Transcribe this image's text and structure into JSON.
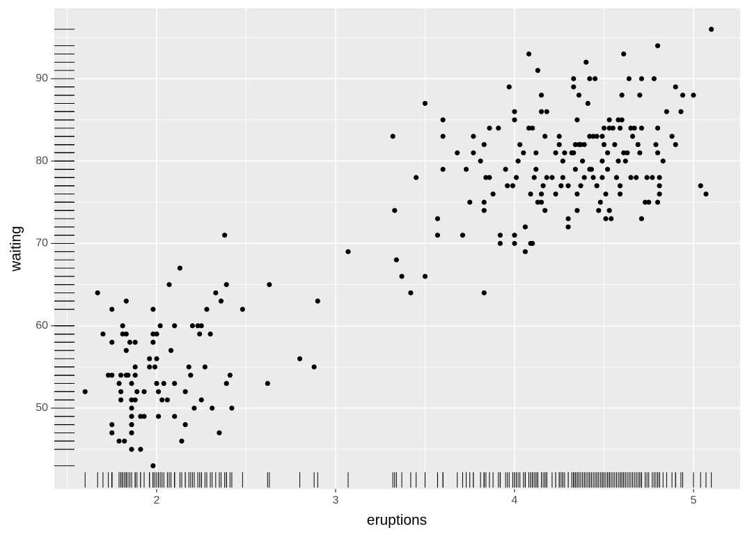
{
  "chart_data": {
    "type": "scatter",
    "x_label": "eruptions",
    "y_label": "waiting",
    "color": "#000000",
    "rug": true,
    "grid": true,
    "xlim": [
      1.428,
      5.261
    ],
    "ylim": [
      40.19,
      98.54
    ],
    "xticks": [
      2,
      3,
      4,
      5
    ],
    "yticks": [
      50,
      60,
      70,
      80,
      90
    ],
    "x": [
      1.6,
      1.67,
      1.7,
      1.73,
      1.75,
      1.75,
      1.75,
      1.75,
      1.75,
      1.79,
      1.79,
      1.8,
      1.8,
      1.8,
      1.81,
      1.81,
      1.82,
      1.83,
      1.83,
      1.83,
      1.83,
      1.84,
      1.85,
      1.86,
      1.86,
      1.86,
      1.86,
      1.86,
      1.86,
      1.86,
      1.88,
      1.88,
      1.88,
      1.88,
      1.89,
      1.91,
      1.91,
      1.93,
      1.93,
      1.96,
      1.96,
      1.98,
      1.98,
      1.98,
      1.98,
      1.99,
      2.0,
      2.0,
      2.0,
      2.01,
      2.01,
      2.02,
      2.03,
      2.04,
      2.06,
      2.07,
      2.08,
      2.1,
      2.1,
      2.1,
      2.13,
      2.14,
      2.16,
      2.16,
      2.18,
      2.19,
      2.2,
      2.21,
      2.23,
      2.24,
      2.25,
      2.25,
      2.27,
      2.28,
      2.3,
      2.31,
      2.33,
      2.35,
      2.36,
      2.38,
      2.39,
      2.39,
      2.41,
      2.42,
      2.48,
      2.62,
      2.63,
      2.8,
      2.88,
      2.9,
      3.07,
      3.32,
      3.33,
      3.34,
      3.37,
      3.42,
      3.45,
      3.5,
      3.5,
      3.57,
      3.57,
      3.6,
      3.6,
      3.6,
      3.68,
      3.71,
      3.73,
      3.75,
      3.77,
      3.77,
      3.81,
      3.83,
      3.83,
      3.83,
      3.83,
      3.84,
      3.86,
      3.86,
      3.88,
      3.91,
      3.92,
      3.92,
      3.95,
      3.96,
      3.97,
      3.99,
      4.0,
      4.0,
      4.0,
      4.0,
      4.01,
      4.02,
      4.03,
      4.05,
      4.06,
      4.06,
      4.08,
      4.09,
      4.08,
      4.09,
      4.1,
      4.1,
      4.11,
      4.12,
      4.12,
      4.13,
      4.13,
      4.15,
      4.15,
      4.15,
      4.15,
      4.16,
      4.17,
      4.17,
      4.18,
      4.18,
      4.21,
      4.23,
      4.23,
      4.25,
      4.25,
      4.26,
      4.27,
      4.27,
      4.28,
      4.3,
      4.3,
      4.3,
      4.32,
      4.33,
      4.33,
      4.33,
      4.34,
      4.34,
      4.35,
      4.35,
      4.35,
      4.36,
      4.36,
      4.37,
      4.37,
      4.38,
      4.39,
      4.39,
      4.4,
      4.41,
      4.42,
      4.42,
      4.42,
      4.43,
      4.44,
      4.44,
      4.45,
      4.46,
      4.46,
      4.47,
      4.48,
      4.49,
      4.49,
      4.49,
      4.5,
      4.5,
      4.51,
      4.51,
      4.52,
      4.52,
      4.53,
      4.53,
      4.53,
      4.54,
      4.55,
      4.56,
      4.57,
      4.58,
      4.58,
      4.59,
      4.59,
      4.59,
      4.6,
      4.6,
      4.61,
      4.61,
      4.62,
      4.63,
      4.64,
      4.65,
      4.65,
      4.66,
      4.67,
      4.68,
      4.69,
      4.7,
      4.7,
      4.71,
      4.71,
      4.71,
      4.73,
      4.74,
      4.75,
      4.77,
      4.78,
      4.79,
      4.8,
      4.8,
      4.8,
      4.8,
      4.81,
      4.81,
      4.81,
      4.83,
      4.85,
      4.88,
      4.9,
      4.9,
      4.93,
      4.94,
      5.0,
      5.04,
      5.07,
      5.1
    ],
    "values": [
      52,
      64,
      59,
      54,
      54,
      58,
      62,
      48,
      47,
      53,
      46,
      52,
      54,
      51,
      60,
      59,
      46,
      57,
      59,
      63,
      54,
      54,
      58,
      53,
      51,
      50,
      49,
      48,
      47,
      45,
      58,
      51,
      54,
      55,
      52,
      49,
      45,
      49,
      52,
      56,
      55,
      59,
      58,
      62,
      43,
      55,
      56,
      53,
      59,
      52,
      49,
      60,
      51,
      53,
      51,
      65,
      57,
      49,
      53,
      60,
      67,
      46,
      48,
      52,
      55,
      54,
      60,
      50,
      60,
      59,
      51,
      60,
      55,
      62,
      59,
      50,
      64,
      47,
      63,
      71,
      53,
      65,
      54,
      50,
      62,
      53,
      65,
      56,
      55,
      63,
      69,
      83,
      74,
      68,
      66,
      64,
      78,
      66,
      87,
      73,
      71,
      85,
      83,
      79,
      81,
      71,
      79,
      75,
      81,
      83,
      80,
      75,
      74,
      82,
      64,
      78,
      78,
      84,
      76,
      84,
      71,
      70,
      79,
      77,
      89,
      77,
      70,
      71,
      86,
      85,
      78,
      80,
      82,
      81,
      72,
      69,
      84,
      76,
      93,
      70,
      70,
      84,
      78,
      79,
      81,
      91,
      75,
      75,
      86,
      88,
      76,
      77,
      74,
      83,
      86,
      78,
      78,
      81,
      76,
      83,
      82,
      77,
      80,
      78,
      81,
      72,
      73,
      77,
      81,
      81,
      90,
      89,
      79,
      82,
      76,
      74,
      85,
      82,
      88,
      77,
      82,
      80,
      82,
      78,
      92,
      87,
      79,
      90,
      83,
      79,
      78,
      83,
      90,
      83,
      77,
      74,
      75,
      80,
      78,
      83,
      84,
      82,
      76,
      73,
      79,
      81,
      84,
      85,
      74,
      73,
      84,
      82,
      78,
      80,
      85,
      84,
      76,
      77,
      85,
      88,
      81,
      93,
      80,
      81,
      90,
      84,
      78,
      83,
      84,
      78,
      82,
      81,
      88,
      73,
      84,
      90,
      75,
      78,
      75,
      78,
      90,
      82,
      84,
      81,
      94,
      75,
      76,
      77,
      78,
      80,
      86,
      83,
      89,
      82,
      86,
      88,
      88,
      77,
      76,
      96
    ]
  }
}
